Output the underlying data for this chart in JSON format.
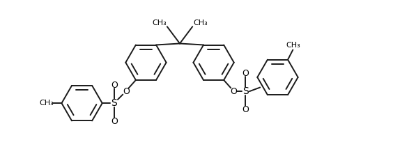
{
  "bg_color": "#ffffff",
  "line_color": "#1a1a1a",
  "line_width": 1.4,
  "figsize": [
    5.97,
    2.24
  ],
  "dpi": 100,
  "xlim": [
    0,
    12
  ],
  "ylim": [
    -1.5,
    4.0
  ]
}
